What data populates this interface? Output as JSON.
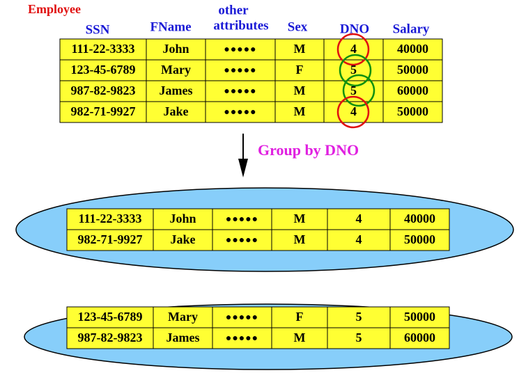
{
  "title": "Employee",
  "columns": [
    "SSN",
    "FName",
    [
      "other",
      "attributes"
    ],
    "Sex",
    "DNO",
    "Salary"
  ],
  "employee": {
    "rows": [
      [
        "111-22-3333",
        "John",
        "●●●●●",
        "M",
        4,
        40000
      ],
      [
        "123-45-6789",
        "Mary",
        "●●●●●",
        "F",
        5,
        50000
      ],
      [
        "987-82-9823",
        "James",
        "●●●●●",
        "M",
        5,
        60000
      ],
      [
        "982-71-9927",
        "Jake",
        "●●●●●",
        "M",
        4,
        50000
      ]
    ]
  },
  "arrow_label": "Group by DNO",
  "groups": [
    {
      "rows": [
        [
          "111-22-3333",
          "John",
          "●●●●●",
          "M",
          4,
          40000
        ],
        [
          "982-71-9927",
          "Jake",
          "●●●●●",
          "M",
          4,
          50000
        ]
      ]
    },
    {
      "rows": [
        [
          "123-45-6789",
          "Mary",
          "●●●●●",
          "F",
          5,
          50000
        ],
        [
          "987-82-9823",
          "James",
          "●●●●●",
          "M",
          5,
          60000
        ]
      ]
    }
  ]
}
